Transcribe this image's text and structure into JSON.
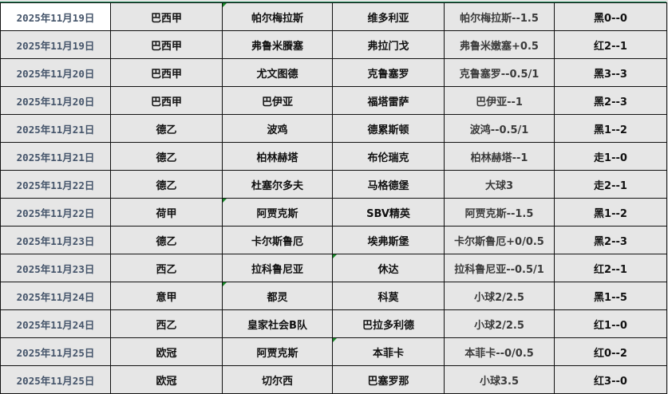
{
  "columns": [
    "date",
    "league",
    "home",
    "away",
    "handicap",
    "result"
  ],
  "rows": [
    {
      "date": "2025年11月19日",
      "league": "巴西甲",
      "home": "帕尔梅拉斯",
      "away": "维多利亚",
      "handicap": "帕尔梅拉斯--1.5",
      "result": "黑0--0"
    },
    {
      "date": "2025年11月19日",
      "league": "巴西甲",
      "home": "弗鲁米賸塞",
      "away": "弗拉门戈",
      "handicap": "弗鲁米嫩塞+0.5",
      "result": "红2--1"
    },
    {
      "date": "2025年11月20日",
      "league": "巴西甲",
      "home": "尤文图德",
      "away": "克鲁塞罗",
      "handicap": "克鲁塞罗--0.5/1",
      "result": "黑3--3"
    },
    {
      "date": "2025年11月20日",
      "league": "巴西甲",
      "home": "巴伊亚",
      "away": "福塔雷萨",
      "handicap": "巴伊亚--1",
      "result": "黑2--3"
    },
    {
      "date": "2025年11月21日",
      "league": "德乙",
      "home": "波鸡",
      "away": "德累斯顿",
      "handicap": "波鸿--0.5/1",
      "result": "黑1--2"
    },
    {
      "date": "2025年11月21日",
      "league": "德乙",
      "home": "柏林赫塔",
      "away": "布伦瑞克",
      "handicap": "柏林赫塔--1",
      "result": "走1--0"
    },
    {
      "date": "2025年11月22日",
      "league": "德乙",
      "home": "杜塞尔多夫",
      "away": "马格德堡",
      "handicap": "大球3",
      "result": "走2--1"
    },
    {
      "date": "2025年11月22日",
      "league": "荷甲",
      "home": "阿贾克斯",
      "away": "SBV精英",
      "handicap": "阿贾克斯--1.5",
      "result": "黑1--2"
    },
    {
      "date": "2025年11月23日",
      "league": "德乙",
      "home": "卡尔斯鲁厄",
      "away": "埃弗斯堡",
      "handicap": "卡尔斯鲁厄+0/0.5",
      "result": "黑2--3"
    },
    {
      "date": "2025年11月23日",
      "league": "西乙",
      "home": "拉科鲁尼亚",
      "away": "休达",
      "handicap": "拉科鲁尼亚--0.5/1",
      "result": "红2--1"
    },
    {
      "date": "2025年11月24日",
      "league": "意甲",
      "home": "都灵",
      "away": "科莫",
      "handicap": "小球2/2.5",
      "result": "黑1--5"
    },
    {
      "date": "2025年11月24日",
      "league": "西乙",
      "home": "皇家社会B队",
      "away": "巴拉多利德",
      "handicap": "小球2/2.5",
      "result": "红1--0"
    },
    {
      "date": "2025年11月25日",
      "league": "欧冠",
      "home": "阿贾克斯",
      "away": "本菲卡",
      "handicap": "本菲卡--0/0.5",
      "result": "红0--2"
    },
    {
      "date": "2025年11月25日",
      "league": "欧冠",
      "home": "切尔西",
      "away": "巴塞罗那",
      "handicap": "小球3.5",
      "result": "红3--0"
    }
  ],
  "colors": {
    "selection_border": "#1e8c5a",
    "cell_bg": "#e6e6e6",
    "date_text": "#44546a",
    "comment_marker": "#1a8a2a"
  }
}
